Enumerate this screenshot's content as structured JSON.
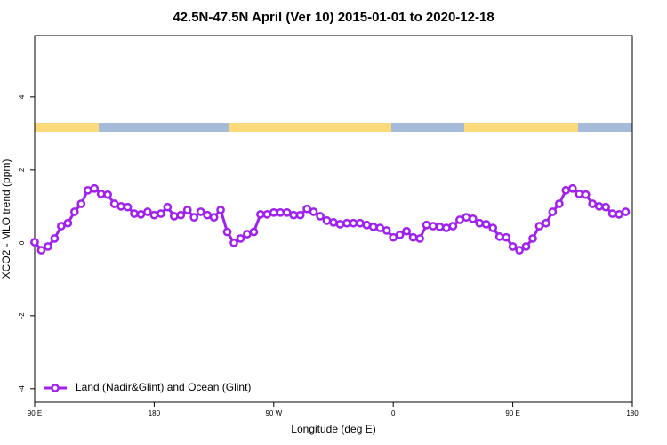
{
  "chart_data": {
    "type": "line",
    "title": "42.5N-47.5N April (Ver 10)   2015-01-01 to 2020-12-18",
    "x_label": "Longitude (deg E)",
    "y_label": "XCO2 - MLO trend (ppm)",
    "x": [
      90,
      95,
      100,
      105,
      110,
      115,
      120,
      125,
      130,
      135,
      140,
      145,
      150,
      155,
      160,
      165,
      170,
      175,
      180,
      185,
      190,
      195,
      200,
      205,
      210,
      215,
      220,
      225,
      230,
      235,
      240,
      245,
      250,
      255,
      260,
      265,
      270,
      275,
      280,
      285,
      290,
      295,
      300,
      305,
      310,
      315,
      320,
      325,
      330,
      335,
      340,
      345,
      350,
      355,
      360,
      365,
      370,
      375,
      380,
      385,
      390,
      395,
      400,
      405,
      410,
      415,
      420,
      425,
      430,
      435,
      440,
      445,
      450,
      455,
      460,
      465,
      470,
      475,
      480,
      485,
      490,
      495,
      500,
      505,
      510,
      515,
      520,
      525,
      530,
      535
    ],
    "series": [
      {
        "name": "Land (Nadir&Glint) and Ocean (Glint)",
        "color": "#a020f0",
        "values": [
          0.02,
          -0.2,
          -0.1,
          0.12,
          0.46,
          0.54,
          0.85,
          1.07,
          1.44,
          1.49,
          1.34,
          1.32,
          1.07,
          1.0,
          0.98,
          0.8,
          0.78,
          0.85,
          0.76,
          0.8,
          0.98,
          0.73,
          0.76,
          0.9,
          0.7,
          0.85,
          0.76,
          0.7,
          0.9,
          0.3,
          0.0,
          0.12,
          0.24,
          0.3,
          0.78,
          0.78,
          0.83,
          0.83,
          0.83,
          0.76,
          0.76,
          0.93,
          0.85,
          0.73,
          0.61,
          0.56,
          0.51,
          0.54,
          0.54,
          0.54,
          0.49,
          0.44,
          0.41,
          0.34,
          0.15,
          0.22,
          0.32,
          0.15,
          0.12,
          0.49,
          0.46,
          0.44,
          0.41,
          0.46,
          0.63,
          0.7,
          0.66,
          0.54,
          0.51,
          0.41,
          0.17,
          0.15,
          -0.1,
          -0.2,
          -0.1,
          0.12,
          0.46,
          0.54,
          0.85,
          1.07,
          1.44,
          1.49,
          1.34,
          1.32,
          1.07,
          1.0,
          0.98,
          0.8,
          0.78,
          0.85
        ]
      }
    ],
    "xlim": [
      90,
      540
    ],
    "xticks": [
      {
        "value": 90,
        "label": "90 E"
      },
      180,
      {
        "value": 270,
        "label": "90 W"
      },
      {
        "value": 360,
        "label": "0"
      },
      {
        "value": 450,
        "label": "90 E"
      },
      {
        "value": 540,
        "label": "180"
      }
    ],
    "ylim": [
      -4.37,
      5.68
    ],
    "yticks": [
      -4,
      -2,
      0,
      2,
      4
    ],
    "legend": "bottom-left"
  }
}
